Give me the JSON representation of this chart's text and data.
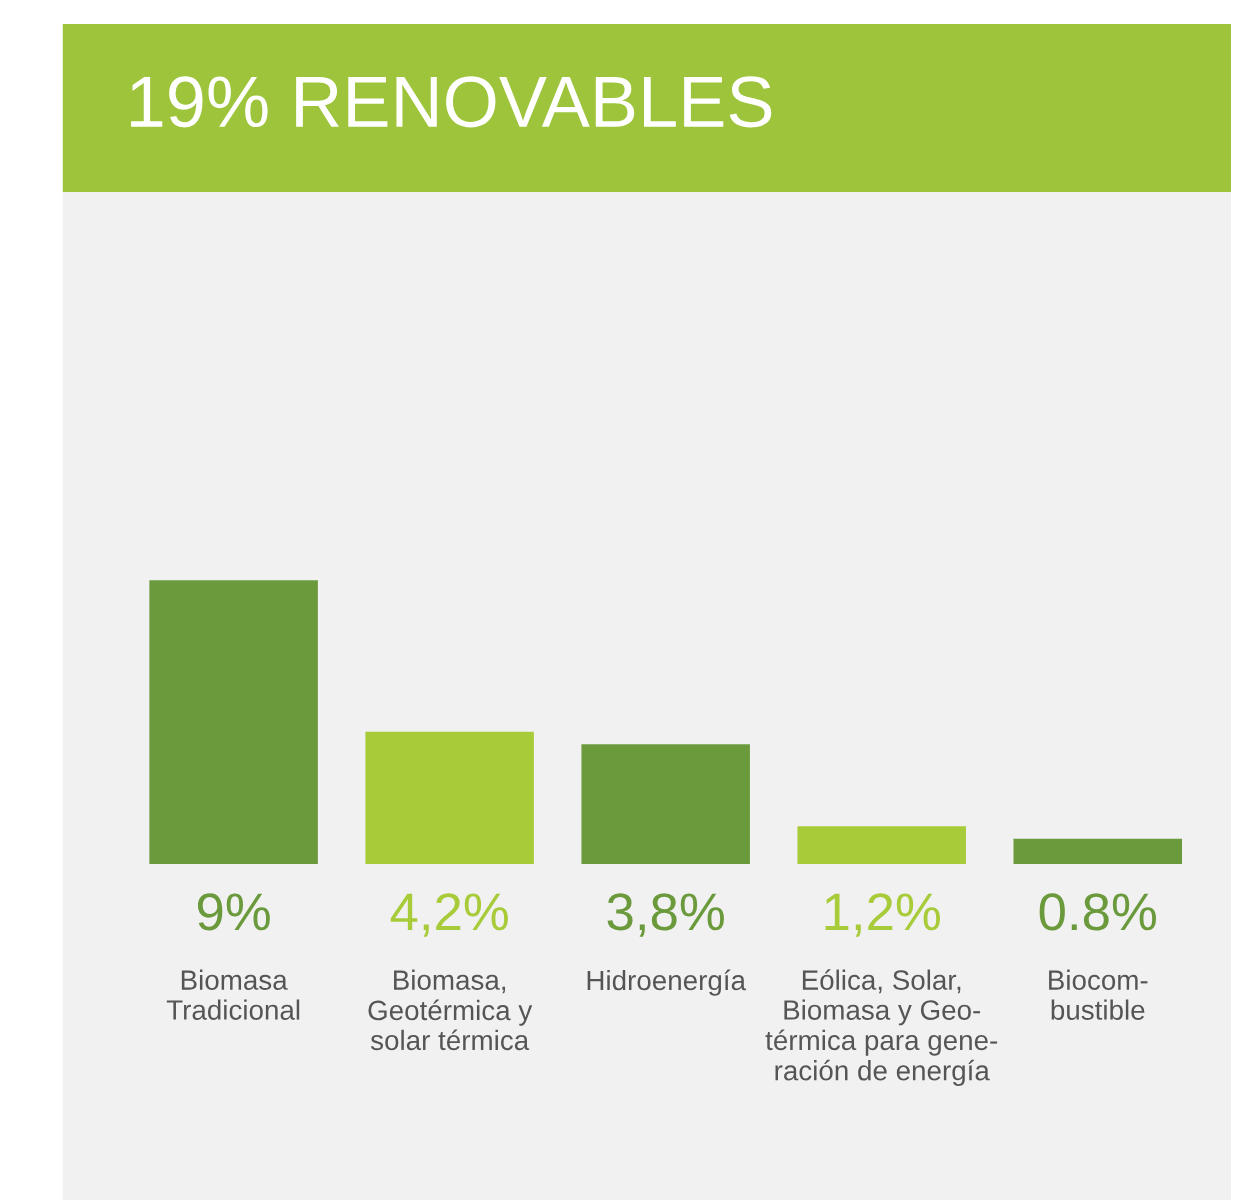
{
  "chart_data": {
    "type": "bar",
    "title": "19% RENOVABLES",
    "categories": [
      "Biomasa\nTradicional",
      "Biomasa,\nGeotérmica y\nsolar térmica",
      "Hidroenergía",
      "Eólica, Solar,\nBiomasa y Geo-\ntérmica para gene-\nración de energía",
      "Biocom-\nbustible"
    ],
    "values": [
      9,
      4.2,
      3.8,
      1.2,
      0.8
    ],
    "colors": [
      "#6b9a3c",
      "#a8cb3a",
      "#6b9a3c",
      "#a8cb3a",
      "#6b9a3c"
    ],
    "value_labels": [
      "9%",
      "4,2%",
      "3,8%",
      "1,2%",
      "0.8%"
    ],
    "grid": false,
    "legend": false
  }
}
